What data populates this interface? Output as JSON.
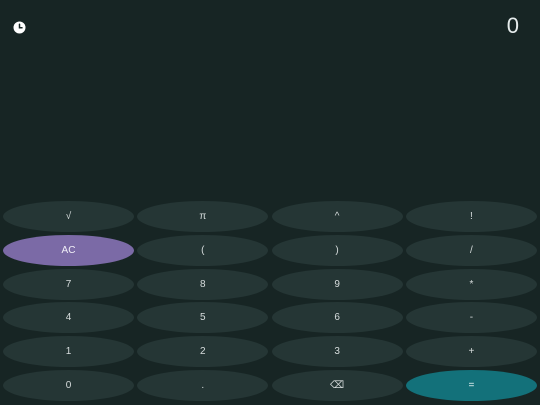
{
  "display": {
    "value": "0"
  },
  "history": {
    "icon": "clock-icon"
  },
  "colors": {
    "background": "#172524",
    "key": "#253635",
    "ac_key": "#7b6aa6",
    "equals_key": "#13717a",
    "text": "#d7dddd"
  },
  "keys": [
    {
      "label": "√",
      "name": "sqrt-button"
    },
    {
      "label": "π",
      "name": "pi-button"
    },
    {
      "label": "^",
      "name": "power-button"
    },
    {
      "label": "!",
      "name": "factorial-button"
    },
    {
      "label": "AC",
      "name": "all-clear-button"
    },
    {
      "label": "(",
      "name": "open-paren-button"
    },
    {
      "label": ")",
      "name": "close-paren-button"
    },
    {
      "label": "/",
      "name": "divide-button"
    },
    {
      "label": "7",
      "name": "digit-7-button"
    },
    {
      "label": "8",
      "name": "digit-8-button"
    },
    {
      "label": "9",
      "name": "digit-9-button"
    },
    {
      "label": "*",
      "name": "multiply-button"
    },
    {
      "label": "4",
      "name": "digit-4-button"
    },
    {
      "label": "5",
      "name": "digit-5-button"
    },
    {
      "label": "6",
      "name": "digit-6-button"
    },
    {
      "label": "-",
      "name": "subtract-button"
    },
    {
      "label": "1",
      "name": "digit-1-button"
    },
    {
      "label": "2",
      "name": "digit-2-button"
    },
    {
      "label": "3",
      "name": "digit-3-button"
    },
    {
      "label": "+",
      "name": "add-button"
    },
    {
      "label": "0",
      "name": "digit-0-button"
    },
    {
      "label": ".",
      "name": "decimal-button"
    },
    {
      "label": "⌫",
      "name": "backspace-button"
    },
    {
      "label": "=",
      "name": "equals-button"
    }
  ]
}
